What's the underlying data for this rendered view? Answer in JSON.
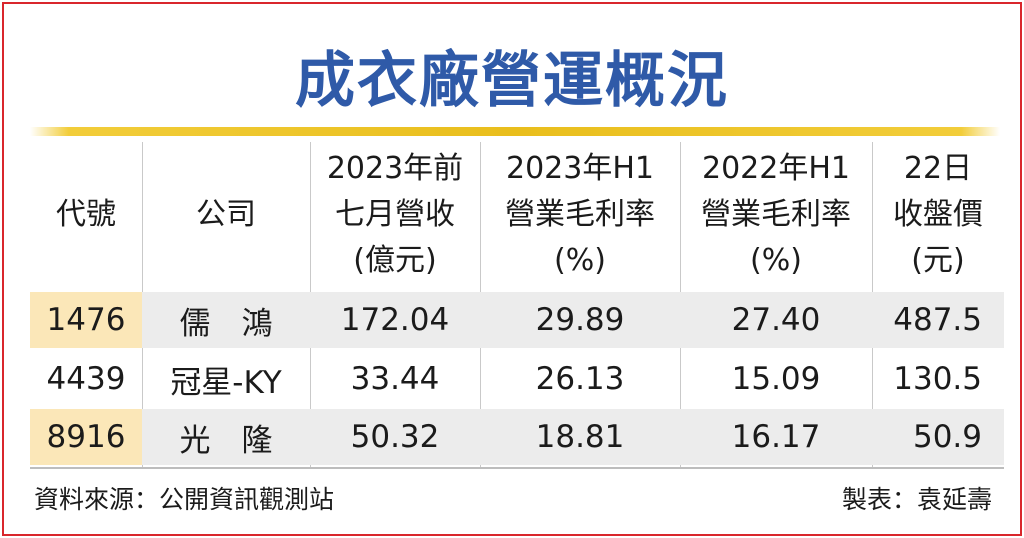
{
  "title": "成衣廠營運概況",
  "chart_data": {
    "type": "table",
    "title": "成衣廠營運概況",
    "headers": [
      [
        "代號"
      ],
      [
        "公司"
      ],
      [
        "2023年前",
        "七月營收",
        "(億元)"
      ],
      [
        "2023年H1",
        "營業毛利率",
        "(%)"
      ],
      [
        "2022年H1",
        "營業毛利率",
        "(%)"
      ],
      [
        "22日",
        "收盤價",
        "(元)"
      ]
    ],
    "rows": [
      [
        "1476",
        "儒　鴻",
        "172.04",
        "29.89",
        "27.40",
        "487.5"
      ],
      [
        "4439",
        "冠星-KY",
        "33.44",
        "26.13",
        "15.09",
        "130.5"
      ],
      [
        "8916",
        "光　隆",
        "50.32",
        "18.81",
        "16.17",
        "50.9"
      ]
    ]
  },
  "footer": {
    "source": "資料來源：公開資訊觀測站",
    "maker": "製表：袁延壽"
  },
  "colors": {
    "title": "#2f5aa8",
    "border": "#d9262c",
    "gold_line": "#e9be1c",
    "row_shade": "#ececec",
    "code_shade": "#fbe7b8"
  }
}
